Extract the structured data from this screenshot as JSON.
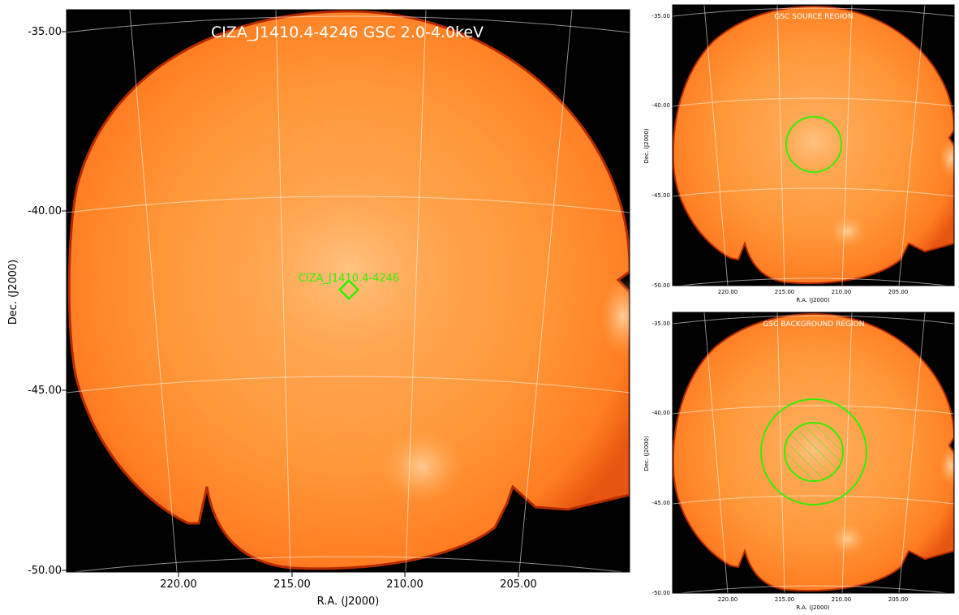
{
  "main_panel": {
    "title": "CIZA_J1410.4-4246 GSC 2.0-4.0keV",
    "source_label": "CIZA_J1410.4-4246",
    "y_axis_label": "Dec. (J2000)",
    "x_axis_label": "R.A. (J2000)",
    "dec_ticks": [
      "-35.00",
      "-40.00",
      "-45.00",
      "-50.00"
    ],
    "ra_ticks": [
      "220.00",
      "215.00",
      "210.00",
      "205.00"
    ]
  },
  "source_panel": {
    "title": "GSC SOURCE REGION",
    "y_axis_label": "Dec. (J2000)",
    "x_axis_label": "R.A. (J2000)",
    "dec_ticks": [
      "-35.00",
      "-40.00",
      "-45.00",
      "-50.00"
    ],
    "ra_ticks": [
      "220.00",
      "215.00",
      "210.00",
      "205.00"
    ]
  },
  "background_panel": {
    "title": "GSC BACKGROUND REGION",
    "y_axis_label": "Dec. (J2000)",
    "x_axis_label": "R.A. (J2000)",
    "dec_ticks": [
      "-35.00",
      "-40.00",
      "-45.00",
      "-50.00"
    ],
    "ra_ticks": [
      "220.00",
      "215.00",
      "210.00",
      "205.00"
    ]
  },
  "colors": {
    "sky_fill": "#ff8a2e",
    "edge": "#b52a00",
    "region": "#33ee00",
    "grid": "#ffffff",
    "frame_bg": "#000000"
  }
}
